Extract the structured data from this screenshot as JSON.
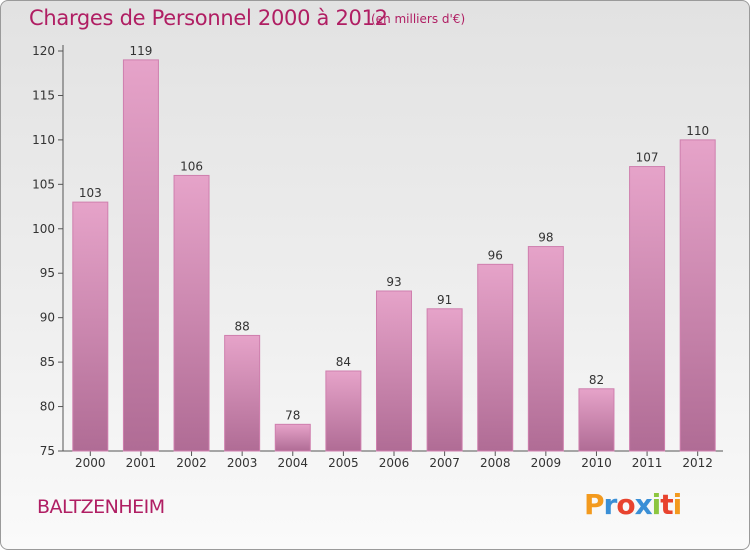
{
  "chart_data": {
    "type": "bar",
    "title": "Charges de Personnel 2000 à 2012",
    "subtitle": "(en milliers d'€)",
    "categories": [
      "2000",
      "2001",
      "2002",
      "2003",
      "2004",
      "2005",
      "2006",
      "2007",
      "2008",
      "2009",
      "2010",
      "2011",
      "2012"
    ],
    "values": [
      103,
      119,
      106,
      88,
      78,
      84,
      93,
      91,
      96,
      98,
      82,
      107,
      110
    ],
    "ylim": [
      75,
      120
    ],
    "yticks": [
      75,
      80,
      85,
      90,
      95,
      100,
      105,
      110,
      115,
      120
    ],
    "xlabel": "",
    "ylabel": "",
    "grid": false
  },
  "footer": {
    "city": "BALTZENHEIM",
    "logo_letters": [
      "P",
      "r",
      "o",
      "x",
      "i",
      "t",
      "i"
    ],
    "logo_colors": [
      "#f39a1e",
      "#3a8fd6",
      "#e8432e",
      "#3a8fd6",
      "#8cc63f",
      "#e8432e",
      "#f39a1e"
    ]
  },
  "colors": {
    "bar_top": "#e6a3c9",
    "bar_bottom": "#b06c95",
    "bar_edge": "#cf7fae",
    "accent": "#b01e63"
  }
}
